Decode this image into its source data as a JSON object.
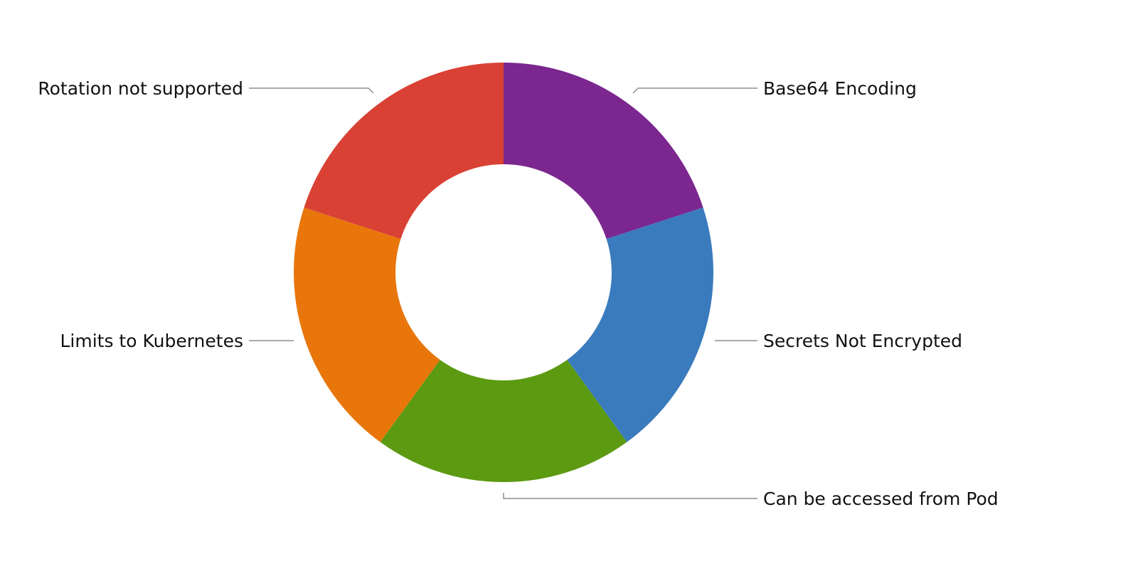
{
  "chart_data": {
    "type": "pie",
    "donut": true,
    "legend": "none",
    "slices": [
      {
        "label": "Base64 Encoding",
        "value": 20,
        "color": "#7b278f"
      },
      {
        "label": "Secrets Not Encrypted",
        "value": 20,
        "color": "#3a7bbd"
      },
      {
        "label": "Can be accessed from Pod",
        "value": 20,
        "color": "#5c9a12"
      },
      {
        "label": "Limits to Kubernetes",
        "value": 20,
        "color": "#e8760b"
      },
      {
        "label": "Rotation not supported",
        "value": 20,
        "color": "#d94134"
      }
    ]
  }
}
